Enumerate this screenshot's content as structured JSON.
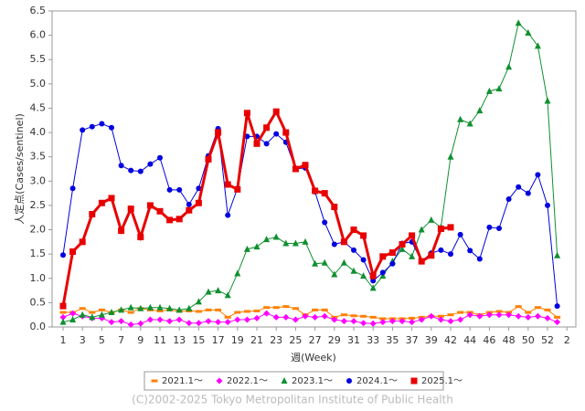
{
  "chart_data": {
    "type": "line",
    "y_label": "人定点(Cases/sentinel)",
    "x_label": "週(Week)",
    "footer": "(C)2002-2025 Tokyo Metropolitan Institute of Public Health",
    "categories": [
      "1",
      null,
      "3",
      null,
      "5",
      null,
      "7",
      null,
      "9",
      null,
      "11",
      null,
      "13",
      null,
      "15",
      null,
      "17",
      null,
      "19",
      null,
      "21",
      null,
      "23",
      null,
      "25",
      null,
      "27",
      null,
      "29",
      null,
      "31",
      null,
      "33",
      null,
      "35",
      null,
      "37",
      null,
      "39",
      null,
      "42",
      null,
      "44",
      null,
      "46",
      null,
      "48",
      null,
      "50",
      null,
      "52",
      null,
      "2"
    ],
    "ylim": [
      0,
      6.5
    ],
    "yticks": [
      {
        "value": 0,
        "label": "0.0"
      },
      0.5,
      {
        "value": 1,
        "label": "1.0"
      },
      1.5,
      {
        "value": 2,
        "label": "2.0"
      },
      2.5,
      {
        "value": 3,
        "label": "3.0"
      },
      3.5,
      {
        "value": 4,
        "label": "4.0"
      },
      4.5,
      {
        "value": 5,
        "label": "5.0"
      },
      5.5,
      {
        "value": 6,
        "label": "6.0"
      },
      6.5
    ],
    "grid": false,
    "legend": "bottom",
    "series": [
      {
        "name": "2021.1～",
        "color": "#ff8000",
        "marker": "dash",
        "values": [
          0.3,
          0.3,
          0.38,
          0.3,
          0.35,
          0.3,
          0.35,
          0.3,
          0.38,
          0.35,
          0.33,
          0.35,
          0.32,
          0.33,
          0.32,
          0.35,
          0.35,
          0.2,
          0.3,
          0.32,
          0.33,
          0.4,
          0.4,
          0.42,
          0.38,
          0.25,
          0.35,
          0.35,
          0.2,
          0.25,
          0.23,
          0.22,
          0.2,
          0.17,
          0.17,
          0.17,
          0.18,
          0.2,
          0.22,
          0.22,
          0.25,
          0.3,
          0.3,
          0.25,
          0.3,
          0.32,
          0.3,
          0.42,
          0.3,
          0.4,
          0.35,
          0.2,
          null
        ]
      },
      {
        "name": "2022.1～",
        "color": "#ff00ff",
        "marker": "diamond",
        "values": [
          0.2,
          0.28,
          0.22,
          0.18,
          0.18,
          0.1,
          0.12,
          0.05,
          0.07,
          0.15,
          0.15,
          0.12,
          0.15,
          0.08,
          0.08,
          0.12,
          0.1,
          0.1,
          0.15,
          0.15,
          0.18,
          0.28,
          0.2,
          0.2,
          0.15,
          0.22,
          0.2,
          0.22,
          0.15,
          0.12,
          0.12,
          0.08,
          0.07,
          0.1,
          0.12,
          0.12,
          0.1,
          0.15,
          0.22,
          0.15,
          0.12,
          0.15,
          0.25,
          0.22,
          0.25,
          0.25,
          0.25,
          0.22,
          0.2,
          0.22,
          0.18,
          0.1,
          null
        ]
      },
      {
        "name": "2023.1～",
        "color": "#109030",
        "marker": "triangle",
        "values": [
          0.1,
          0.15,
          0.25,
          0.2,
          0.25,
          0.3,
          0.35,
          0.4,
          0.38,
          0.4,
          0.4,
          0.38,
          0.35,
          0.38,
          0.52,
          0.72,
          0.75,
          0.65,
          1.1,
          1.6,
          1.65,
          1.8,
          1.85,
          1.72,
          1.72,
          1.75,
          1.3,
          1.32,
          1.08,
          1.32,
          1.15,
          1.05,
          0.8,
          1.05,
          1.35,
          1.6,
          1.45,
          2.0,
          2.2,
          2.05,
          3.5,
          4.27,
          4.18,
          4.45,
          4.85,
          4.9,
          5.35,
          6.25,
          6.05,
          5.78,
          4.65,
          1.47,
          null
        ]
      },
      {
        "name": "2024.1～",
        "color": "#0000e0",
        "marker": "circle",
        "values": [
          1.48,
          2.85,
          4.05,
          4.12,
          4.18,
          4.1,
          3.32,
          3.22,
          3.2,
          3.35,
          3.48,
          2.82,
          2.82,
          2.52,
          2.85,
          3.52,
          4.08,
          2.3,
          2.85,
          3.92,
          3.92,
          3.77,
          3.97,
          3.8,
          3.25,
          3.27,
          2.78,
          2.15,
          1.7,
          1.75,
          1.58,
          1.38,
          0.95,
          1.12,
          1.3,
          1.72,
          1.75,
          1.35,
          1.52,
          1.58,
          1.5,
          1.9,
          1.57,
          1.4,
          2.05,
          2.03,
          2.63,
          2.88,
          2.75,
          3.13,
          2.5,
          0.43,
          null
        ]
      },
      {
        "name": "2025.1～",
        "color": "#e80000",
        "marker": "square",
        "width": 3,
        "values": [
          0.43,
          1.55,
          1.75,
          2.32,
          2.55,
          2.65,
          1.98,
          2.43,
          1.85,
          2.5,
          2.38,
          2.2,
          2.22,
          2.4,
          2.55,
          3.45,
          4.0,
          2.93,
          2.83,
          4.4,
          3.77,
          4.1,
          4.43,
          4.0,
          3.25,
          3.33,
          2.8,
          2.75,
          2.47,
          1.75,
          2.0,
          1.88,
          1.05,
          1.45,
          1.53,
          1.7,
          1.88,
          1.35,
          1.47,
          2.02,
          2.05,
          null,
          null,
          null,
          null,
          null,
          null,
          null,
          null,
          null,
          null,
          null,
          null
        ]
      }
    ]
  }
}
